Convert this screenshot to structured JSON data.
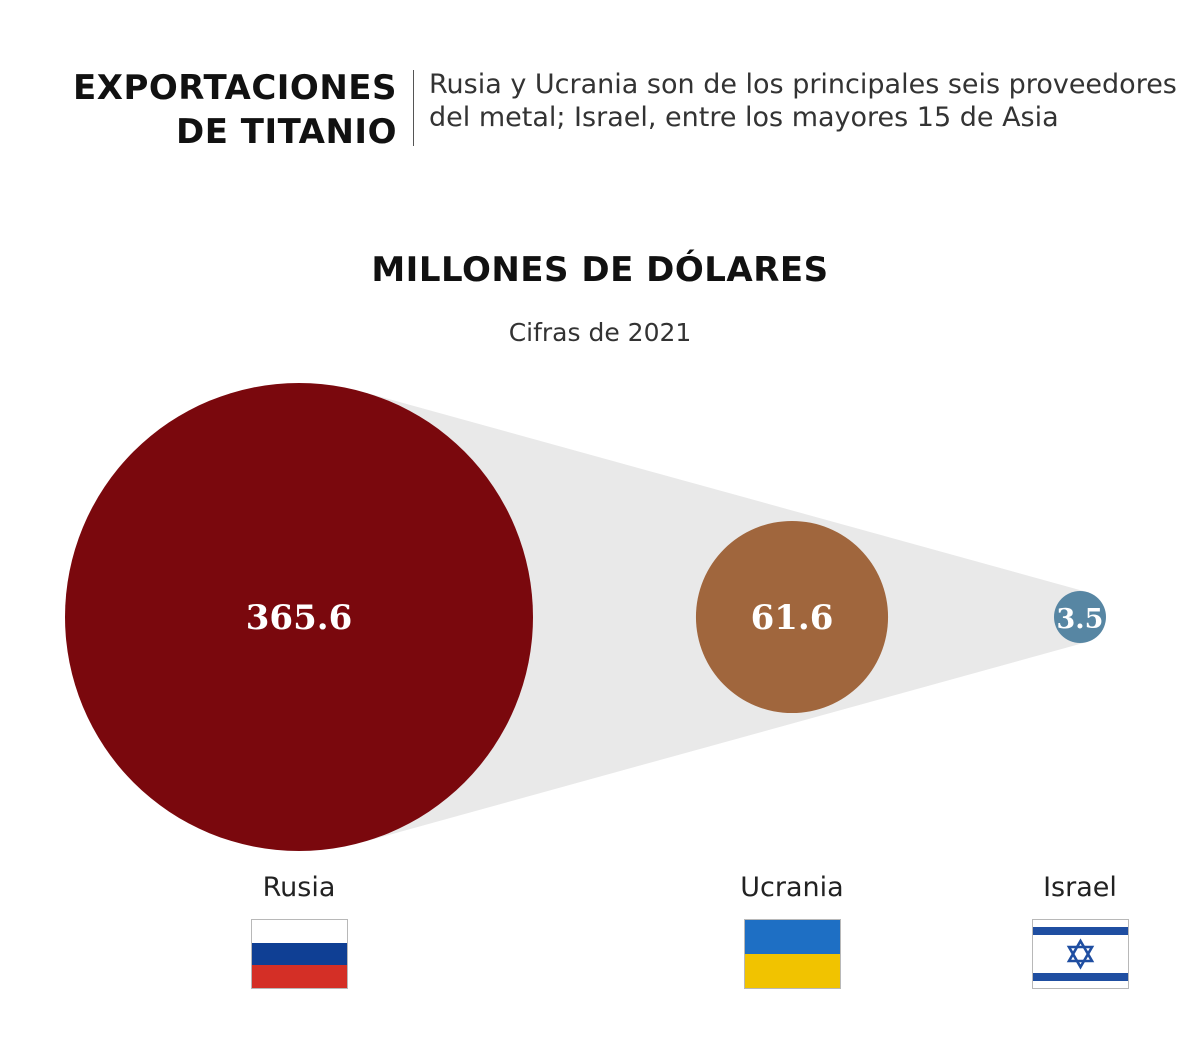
{
  "header": {
    "title_line1": "EXPORTACIONES",
    "title_line2": "DE TITANIO",
    "subtitle_line1": "Rusia y Ucrania son de los principales seis proveedores",
    "subtitle_line2": "del metal; Israel, entre los mayores 15 de Asia"
  },
  "colors": {
    "rusia": "#7a080d",
    "ucrania": "#a0663d",
    "israel": "#5786a3",
    "connector": "#e9e9e9",
    "value_text": "#ffffff"
  },
  "chart_data": {
    "type": "bubble",
    "title": "MILLONES DE DÓLARES",
    "subtitle": "Cifras de 2021",
    "categories": [
      "Rusia",
      "Ucrania",
      "Israel"
    ],
    "values": [
      365.6,
      61.6,
      3.5
    ],
    "value_labels": [
      "365.6",
      "61.6",
      "3.5"
    ],
    "legend": "none",
    "grid": false
  },
  "flags": [
    {
      "country": "Rusia",
      "icon": "russia-flag-icon",
      "stripes": [
        "#ffffff",
        "#0f3f94",
        "#d42f26"
      ]
    },
    {
      "country": "Ucrania",
      "icon": "ukraine-flag-icon",
      "stripes": [
        "#1e6fc4",
        "#f1c300"
      ]
    },
    {
      "country": "Israel",
      "icon": "israel-flag-icon",
      "stripes": [
        "#ffffff"
      ],
      "star_color": "#1f4ea1"
    }
  ]
}
